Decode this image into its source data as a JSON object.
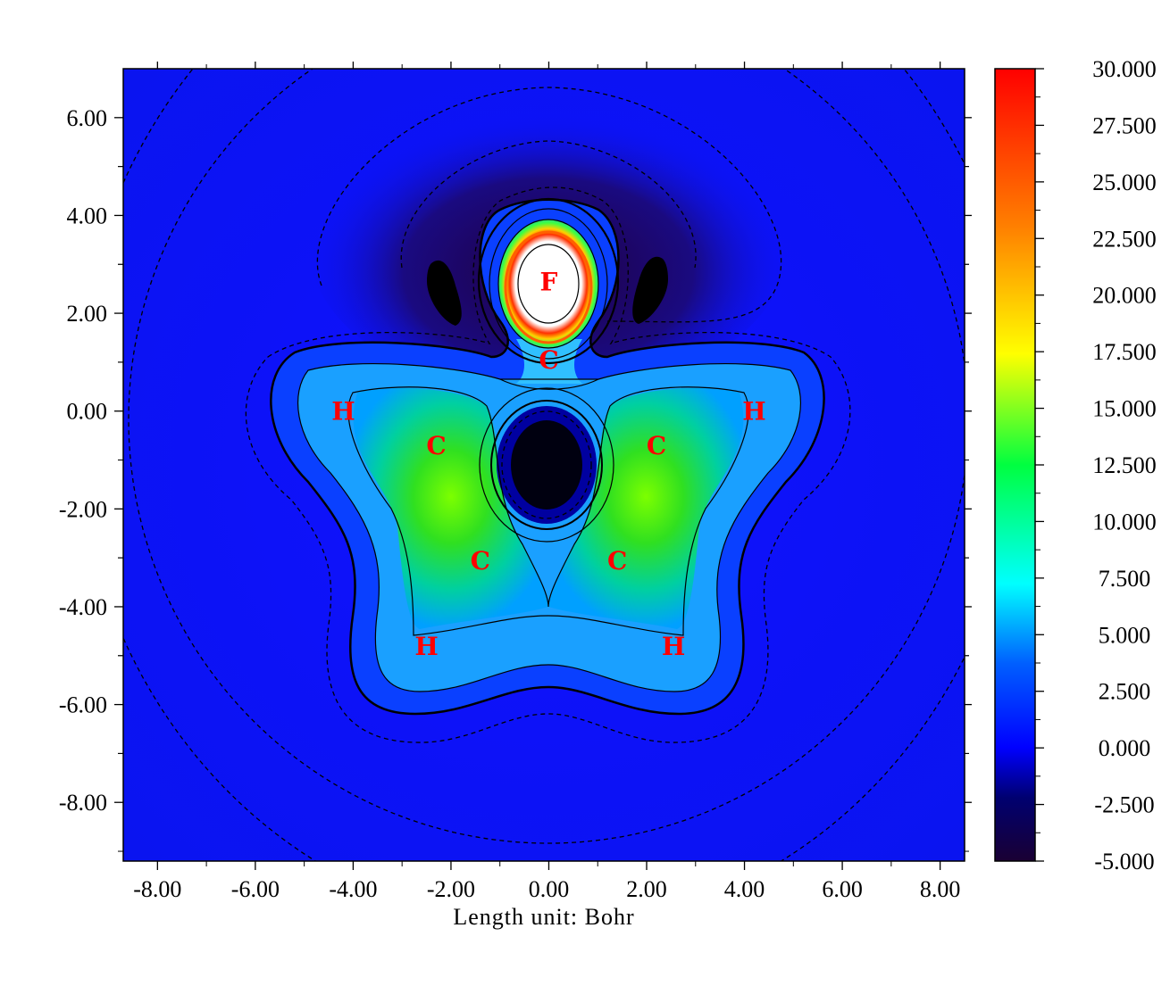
{
  "chart_data": {
    "type": "heatmap",
    "title": "",
    "xlabel": "Length unit: Bohr",
    "ylabel": "",
    "xlim": [
      -8.7,
      8.5
    ],
    "ylim": [
      -9.2,
      7.0
    ],
    "x_ticks": [
      "-8.00",
      "-6.00",
      "-4.00",
      "-2.00",
      "0.00",
      "2.00",
      "4.00",
      "6.00",
      "8.00"
    ],
    "x_tick_values": [
      -8,
      -6,
      -4,
      -2,
      0,
      2,
      4,
      6,
      8
    ],
    "y_ticks": [
      "6.00",
      "4.00",
      "2.00",
      "0.00",
      "-2.00",
      "-4.00",
      "-6.00",
      "-8.00"
    ],
    "y_tick_values": [
      6,
      4,
      2,
      0,
      -2,
      -4,
      -6,
      -8
    ],
    "colorbar": {
      "min": -5.0,
      "max": 30.0,
      "ticks": [
        "30.000",
        "27.500",
        "25.000",
        "22.500",
        "20.000",
        "17.500",
        "15.000",
        "12.500",
        "10.000",
        "7.500",
        "5.000",
        "2.500",
        "0.000",
        "-2.500",
        "-5.000"
      ],
      "tick_values": [
        30,
        27.5,
        25,
        22.5,
        20,
        17.5,
        15,
        12.5,
        10,
        7.5,
        5,
        2.5,
        0,
        -2.5,
        -5
      ],
      "colormap": [
        "#1a0033",
        "#0000ff",
        "#00ffff",
        "#00ff00",
        "#ffff00",
        "#ff0000"
      ]
    },
    "atoms": [
      {
        "label": "F",
        "x": 0.0,
        "y": 2.65
      },
      {
        "label": "C",
        "x": 0.0,
        "y": 1.05
      },
      {
        "label": "C",
        "x": -2.3,
        "y": -0.7
      },
      {
        "label": "C",
        "x": 2.2,
        "y": -0.7
      },
      {
        "label": "C",
        "x": -1.4,
        "y": -3.05
      },
      {
        "label": "C",
        "x": 1.4,
        "y": -3.05
      },
      {
        "label": "H",
        "x": -4.2,
        "y": 0.0
      },
      {
        "label": "H",
        "x": 4.2,
        "y": 0.0
      },
      {
        "label": "H",
        "x": -2.5,
        "y": -4.8
      },
      {
        "label": "H",
        "x": 2.55,
        "y": -4.8
      }
    ]
  }
}
